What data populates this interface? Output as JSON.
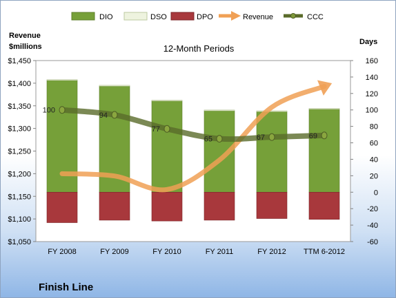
{
  "company": "Finish Line",
  "chart_data": {
    "type": "bar",
    "title": "12-Month Periods",
    "ylabel_left": [
      "Revenue",
      "$millions"
    ],
    "ylabel_right": "Days",
    "categories": [
      "FY 2008",
      "FY 2009",
      "FY 2010",
      "FY 2011",
      "FY 2012",
      "TTM 6-2012"
    ],
    "left_axis": {
      "min": 1050,
      "max": 1450,
      "step": 50,
      "tick_labels": [
        "$1,050",
        "$1,100",
        "$1,150",
        "$1,200",
        "$1,250",
        "$1,300",
        "$1,350",
        "$1,400",
        "$1,450"
      ]
    },
    "right_axis": {
      "min": -60,
      "max": 160,
      "step": 20,
      "tick_labels": [
        "-60",
        "-40",
        "-20",
        "0",
        "20",
        "40",
        "60",
        "80",
        "100",
        "120",
        "140",
        "160"
      ]
    },
    "grid": false,
    "legend_position": "top",
    "series": [
      {
        "name": "DIO",
        "type": "bar-stacked-positive",
        "axis": "right",
        "color": "#76a039",
        "values": [
          136,
          129,
          111,
          99,
          98,
          101
        ]
      },
      {
        "name": "DSO",
        "type": "bar-stacked-positive",
        "axis": "right",
        "color": "#eef3df",
        "values": [
          1,
          1,
          1,
          1,
          1,
          1
        ]
      },
      {
        "name": "DPO",
        "type": "bar-negative",
        "axis": "right",
        "color": "#a8383c",
        "values": [
          -37,
          -34,
          -35,
          -34,
          -32,
          -33
        ]
      },
      {
        "name": "Revenue",
        "type": "line-arrow",
        "axis": "left",
        "color": "#f0a055",
        "values": [
          1200,
          1195,
          1165,
          1230,
          1347,
          1393
        ]
      },
      {
        "name": "CCC",
        "type": "line-markers",
        "axis": "right",
        "color": "#5a6b2a",
        "values": [
          100,
          94,
          77,
          65,
          67,
          69
        ]
      }
    ]
  }
}
